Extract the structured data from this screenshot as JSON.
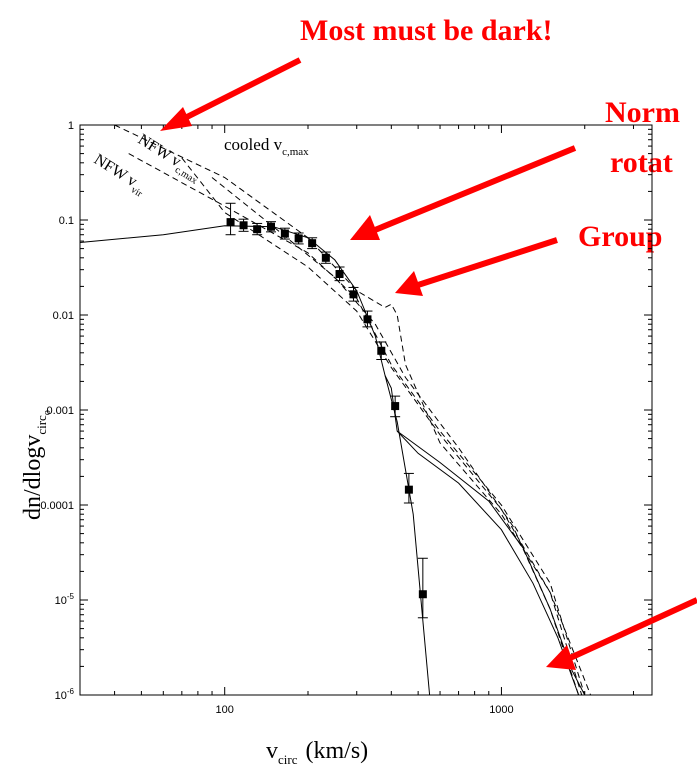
{
  "annotations": {
    "top": "Most must be dark!",
    "right1_line1": "Norm",
    "right1_line2": "rotat",
    "right2": "Group"
  },
  "chart_data": {
    "type": "line",
    "xlabel": "v",
    "xlabel_sub": "circ",
    "xlabel_units": "(km/s)",
    "ylabel": "dn/dlogv",
    "ylabel_sub": "circ",
    "ylabel_sub2": "o",
    "xscale": "log",
    "yscale": "log",
    "xlim": [
      30,
      3500
    ],
    "ylim": [
      1e-06,
      1
    ],
    "x_ticks": [
      {
        "value": 100,
        "label": "100"
      },
      {
        "value": 1000,
        "label": "1000"
      }
    ],
    "y_ticks": [
      {
        "value": 1,
        "label": "1"
      },
      {
        "value": 0.1,
        "label": "0.1"
      },
      {
        "value": 0.01,
        "label": "0.01"
      },
      {
        "value": 0.001,
        "label": "0.001"
      },
      {
        "value": 0.0001,
        "label": "0.0001"
      },
      {
        "value": 1e-05,
        "label": "10",
        "exp": "-5"
      },
      {
        "value": 1e-06,
        "label": "10",
        "exp": "-6"
      }
    ],
    "curve_labels": [
      {
        "text": "cooled v",
        "sub": "c,max"
      },
      {
        "text": "NFW v",
        "sub": "c,max"
      },
      {
        "text": "NFW v",
        "sub": "vir"
      }
    ],
    "series": [
      {
        "style": "points-with-errorbars",
        "x": [
          105,
          117,
          131,
          147,
          165,
          185,
          207,
          232,
          260,
          292,
          328,
          368,
          413,
          463,
          520
        ],
        "y": [
          0.095,
          0.088,
          0.08,
          0.085,
          0.072,
          0.064,
          0.057,
          0.04,
          0.027,
          0.0165,
          0.009,
          0.0042,
          0.0011,
          0.000145,
          1.15e-05
        ],
        "yerr_low": [
          0.025,
          0.012,
          0.01,
          0.01,
          0.009,
          0.008,
          0.007,
          0.005,
          0.004,
          0.0025,
          0.0015,
          0.0008,
          0.00025,
          4e-05,
          5e-06
        ],
        "yerr_high": [
          0.055,
          0.014,
          0.012,
          0.011,
          0.01,
          0.009,
          0.008,
          0.006,
          0.005,
          0.003,
          0.002,
          0.001,
          0.0003,
          7e-05,
          1.6e-05
        ]
      },
      {
        "style": "solid",
        "x": [
          30,
          60,
          100,
          150,
          200,
          250,
          300,
          350,
          380,
          420,
          480,
          550
        ],
        "y": [
          0.058,
          0.07,
          0.087,
          0.085,
          0.065,
          0.038,
          0.018,
          0.006,
          0.0023,
          0.00075,
          8e-05,
          1e-06
        ]
      },
      {
        "style": "solid",
        "x": [
          380,
          400,
          420,
          500,
          700,
          1000,
          1300,
          1600,
          1900
        ],
        "y": [
          0.0023,
          0.0017,
          0.0006,
          0.00035,
          0.00017,
          5.5e-05,
          1.5e-05,
          4e-06,
          1e-06
        ]
      },
      {
        "style": "solid",
        "x": [
          420,
          600,
          900,
          1200,
          1500,
          1800,
          2000
        ],
        "y": [
          0.0006,
          0.00028,
          0.00011,
          3.5e-05,
          8e-06,
          1.8e-06,
          1e-06
        ]
      },
      {
        "style": "dashed",
        "x": [
          40,
          100,
          200,
          300,
          380,
          400,
          420,
          450,
          600,
          1000,
          1500,
          2100
        ],
        "y": [
          1.0,
          0.28,
          0.065,
          0.018,
          0.012,
          0.013,
          0.01,
          0.003,
          0.00045,
          8e-05,
          1.2e-05,
          1e-06
        ]
      },
      {
        "style": "dashed",
        "x": [
          45,
          100,
          200,
          300,
          400,
          600,
          1000,
          1500,
          2000
        ],
        "y": [
          0.5,
          0.14,
          0.045,
          0.015,
          0.003,
          0.0006,
          0.0001,
          1.5e-05,
          1e-06
        ]
      },
      {
        "style": "dashed",
        "x": [
          70,
          100,
          200,
          300,
          400,
          600,
          1000,
          1500,
          1950
        ],
        "y": [
          0.45,
          0.12,
          0.032,
          0.011,
          0.0028,
          0.00055,
          9e-05,
          1.2e-05,
          1e-06
        ]
      },
      {
        "style": "dashed",
        "x": [
          90,
          150,
          250,
          350,
          450,
          700,
          1100,
          1500,
          1900
        ],
        "y": [
          0.28,
          0.085,
          0.025,
          0.008,
          0.0022,
          0.0004,
          6e-05,
          8e-06,
          1e-06
        ]
      }
    ]
  }
}
